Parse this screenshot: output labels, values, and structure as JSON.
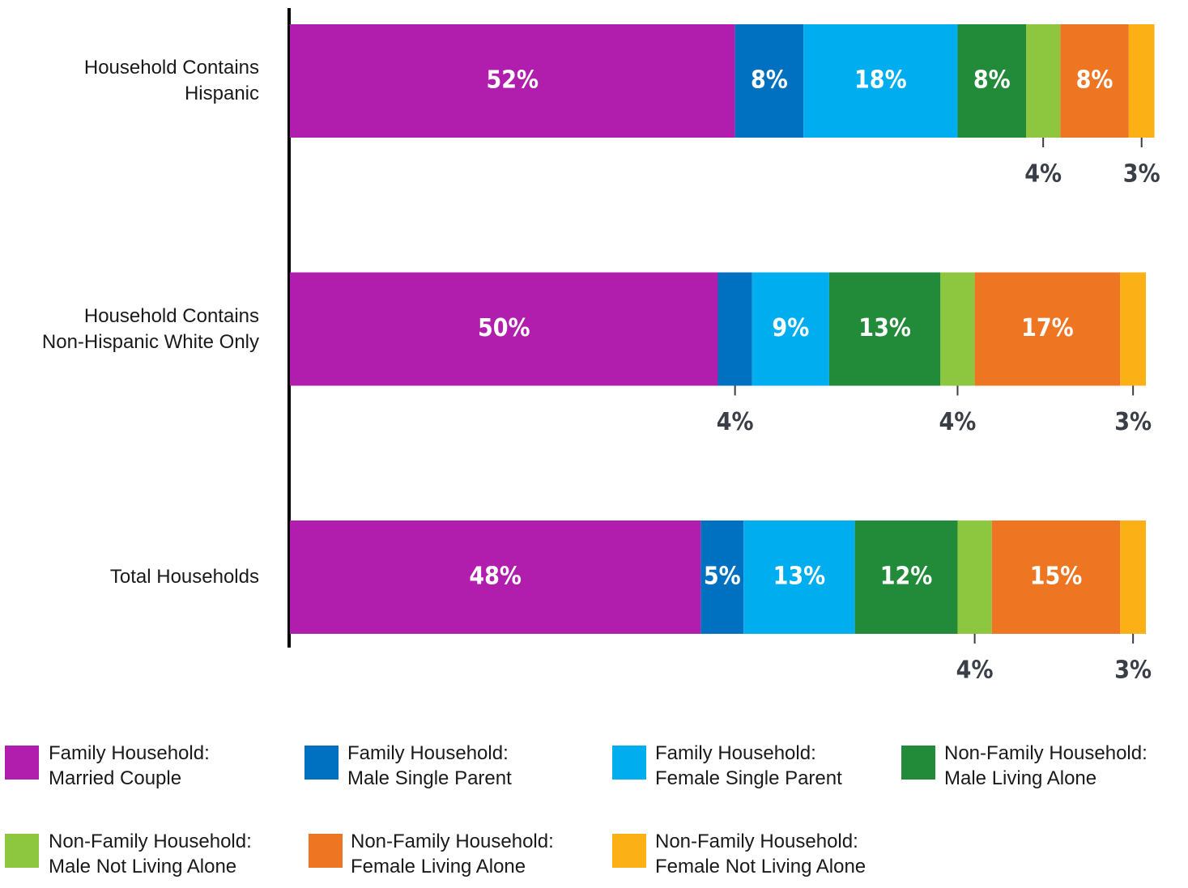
{
  "chart_data": {
    "type": "stacked-barh",
    "categories": [
      "Household Contains\nHispanic",
      "Household Contains\nNon-Hispanic White Only",
      "Total Households"
    ],
    "xlim": [
      0,
      100
    ],
    "series": [
      {
        "name": "Family Household:\nMarried Couple",
        "color": "#b11ead",
        "values": [
          52,
          50,
          48
        ],
        "value_labels": [
          "52%",
          "50%",
          "48%"
        ]
      },
      {
        "name": "Family Household:\nMale Single Parent",
        "color": "#0071c1",
        "values": [
          8,
          4,
          5
        ],
        "value_labels": [
          "8%",
          "4%",
          "5%"
        ]
      },
      {
        "name": "Family Household:\nFemale Single Parent",
        "color": "#00aeef",
        "values": [
          18,
          9,
          13
        ],
        "value_labels": [
          "18%",
          "9%",
          "13%"
        ]
      },
      {
        "name": "Non-Family Household:\nMale Living Alone",
        "color": "#228b3a",
        "values": [
          8,
          13,
          12
        ],
        "value_labels": [
          "8%",
          "13%",
          "12%"
        ]
      },
      {
        "name": "Non-Family Household:\nMale Not Living Alone",
        "color": "#8dc63f",
        "values": [
          4,
          4,
          4
        ],
        "value_labels": [
          "4%",
          "4%",
          "4%"
        ]
      },
      {
        "name": "Non-Family Household:\nFemale Living Alone",
        "color": "#ee7623",
        "values": [
          8,
          17,
          15
        ],
        "value_labels": [
          "8%",
          "17%",
          "15%"
        ]
      },
      {
        "name": "Non-Family Household:\nFemale Not Living Alone",
        "color": "#fbb016",
        "values": [
          3,
          3,
          3
        ],
        "value_labels": [
          "3%",
          "3%",
          "3%"
        ]
      }
    ]
  }
}
